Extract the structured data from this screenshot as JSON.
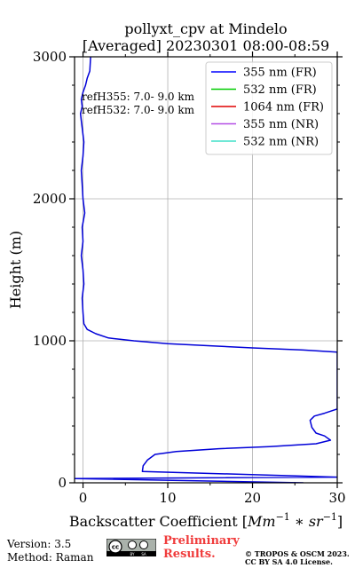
{
  "chart_data": {
    "type": "line",
    "title": [
      "pollyxt_cpv at Mindelo",
      "[Averaged] 20230301 08:00-08:59"
    ],
    "xlabel_prefix": "Backscatter Coefficient [",
    "xlabel_math": "Mm",
    "xlabel_exp1": "−1",
    "xlabel_mid": " ∗ ",
    "xlabel_math2": "sr",
    "xlabel_exp2": "−1",
    "xlabel_suffix": "]",
    "ylabel": "Height (m)",
    "xlim": [
      -1,
      30
    ],
    "ylim": [
      0,
      3000
    ],
    "x_ticks": [
      0,
      10,
      20,
      30
    ],
    "x_tick_labels": [
      "0",
      "10",
      "20",
      "30"
    ],
    "y_ticks": [
      0,
      1000,
      2000,
      3000
    ],
    "y_tick_labels": [
      "0",
      "1000",
      "2000",
      "3000"
    ],
    "y_minor_ticks": [
      200,
      400,
      600,
      800,
      1200,
      1400,
      1600,
      1800,
      2200,
      2400,
      2600,
      2800
    ],
    "x_minor_ticks": [
      5,
      15,
      25
    ],
    "grid": true,
    "legend_position": "top-right",
    "legend": [
      {
        "label": "355 nm (FR)",
        "color": "#0000ff"
      },
      {
        "label": "532 nm (FR)",
        "color": "#00cc00"
      },
      {
        "label": "1064 nm (FR)",
        "color": "#e00000"
      },
      {
        "label": "355 nm (NR)",
        "color": "#b44ee6"
      },
      {
        "label": "532 nm (NR)",
        "color": "#40e0c8"
      }
    ],
    "annotations": [
      "refH355:  7.0- 9.0 km",
      "refH532:  7.0- 9.0 km"
    ],
    "series": [
      {
        "name": "355 nm (FR)",
        "color": "#0000d8",
        "x": [
          26,
          -1,
          30,
          7.0,
          7.1,
          7.6,
          8.5,
          11,
          16,
          22,
          27.5,
          29.2,
          28.5,
          27.5,
          27.0,
          26.8,
          27.3,
          28.5,
          30,
          30,
          26,
          20,
          15,
          10,
          6,
          3,
          1.5,
          0.5,
          0.1,
          0.0,
          -0.1,
          0.1,
          0.0,
          -0.2,
          0.0,
          -0.1,
          0.2,
          0.0,
          -0.1,
          -0.2,
          0.0,
          0.1,
          -0.1,
          -0.2,
          -0.3,
          -0.1,
          -0.2,
          0.0,
          0.3,
          0.5,
          0.8,
          0.9
        ],
        "y": [
          0,
          30,
          40,
          80,
          120,
          160,
          200,
          220,
          240,
          255,
          275,
          300,
          330,
          350,
          390,
          440,
          470,
          490,
          520,
          920,
          935,
          950,
          965,
          980,
          1000,
          1020,
          1050,
          1080,
          1120,
          1200,
          1300,
          1400,
          1500,
          1600,
          1700,
          1800,
          1900,
          2000,
          2100,
          2200,
          2300,
          2400,
          2500,
          2550,
          2600,
          2650,
          2700,
          2750,
          2800,
          2850,
          2900,
          3000
        ]
      }
    ]
  },
  "footer": {
    "version": "Version: 3.5",
    "method": "Method: Raman",
    "preliminary_line1": "Preliminary",
    "preliminary_line2": "Results.",
    "copyright_line1": "© TROPOS & OSCM 2023.",
    "copyright_line2": "CC BY SA 4.0 License."
  },
  "cc_logo": {
    "icon": "cc-by-sa-license-logo",
    "text": "cc BY SA"
  }
}
